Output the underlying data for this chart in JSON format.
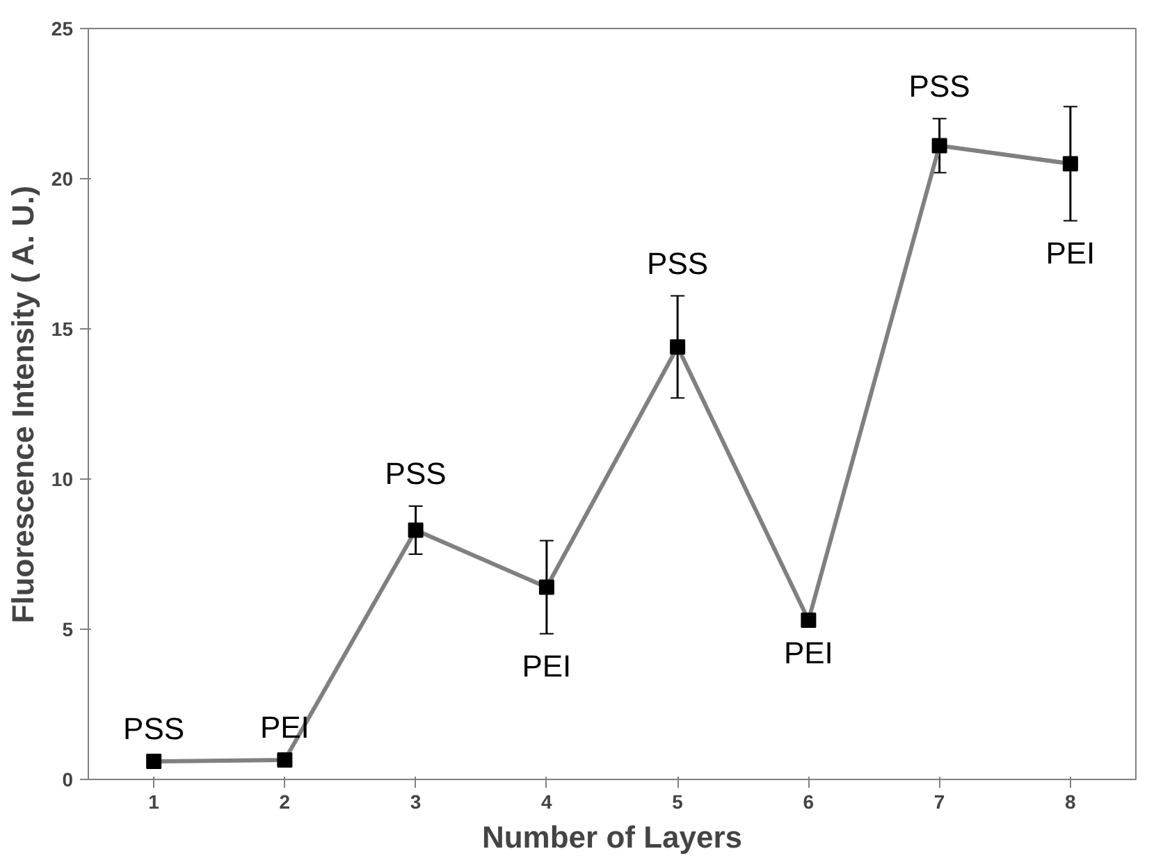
{
  "chart_data": {
    "type": "line",
    "xlabel": "Number of Layers",
    "ylabel": "Fluorescence Intensity ( A. U.)",
    "categories": [
      "1",
      "2",
      "3",
      "4",
      "5",
      "6",
      "7",
      "8"
    ],
    "series": [
      {
        "color": "#808080",
        "values": [
          0.6,
          0.65,
          8.3,
          6.4,
          14.4,
          5.3,
          21.1,
          20.5
        ],
        "errors": [
          null,
          null,
          0.8,
          1.55,
          1.7,
          null,
          0.9,
          1.9
        ]
      }
    ],
    "ylim": [
      0,
      25
    ],
    "yticks": [
      0,
      5,
      10,
      15,
      20,
      25
    ],
    "marker": "square",
    "line_style": "solid",
    "annotations": [
      {
        "text": "PSS",
        "x": "1",
        "y": 0.6
      },
      {
        "text": "PEI",
        "x": "2",
        "y": 0.65
      },
      {
        "text": "PSS",
        "x": "3",
        "y": 8.3
      },
      {
        "text": "PEI",
        "x": "4",
        "y": 6.4
      },
      {
        "text": "PSS",
        "x": "5",
        "y": 14.4
      },
      {
        "text": "PEI",
        "x": "6",
        "y": 5.3
      },
      {
        "text": "PSS",
        "x": "7",
        "y": 21.1
      },
      {
        "text": "PEI",
        "x": "8",
        "y": 20.5
      }
    ]
  }
}
